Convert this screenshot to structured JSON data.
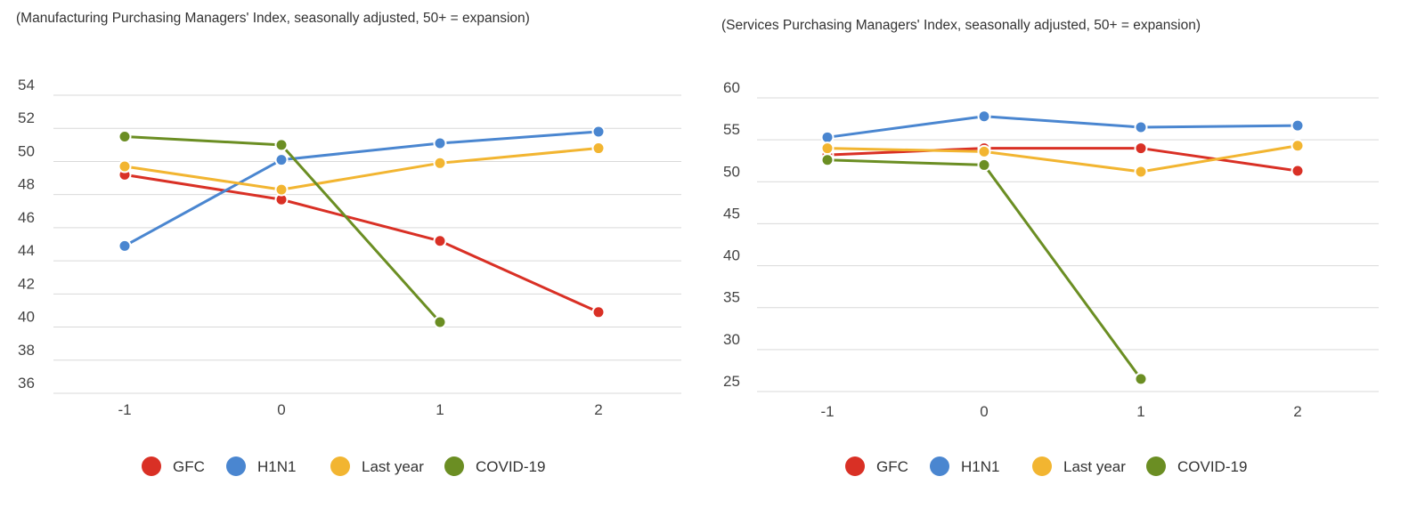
{
  "chart_data": [
    {
      "type": "line",
      "title": "(Manufacturing Purchasing Managers' Index, seasonally adjusted, 50+ = expansion)",
      "xlabel": "",
      "ylabel": "",
      "x": [
        "-1",
        "0",
        "1",
        "2"
      ],
      "yticks": [
        "36",
        "38",
        "40",
        "42",
        "44",
        "46",
        "48",
        "50",
        "52",
        "54"
      ],
      "ylim": [
        35,
        55
      ],
      "grid": true,
      "legend_position": "bottom",
      "series": [
        {
          "name": "GFC",
          "color": "#d93025",
          "values": [
            49.2,
            47.7,
            45.2,
            40.9
          ]
        },
        {
          "name": "H1N1",
          "color": "#4a86d0",
          "values": [
            44.9,
            50.1,
            51.1,
            51.8
          ]
        },
        {
          "name": "Last year",
          "color": "#f2b531",
          "values": [
            49.7,
            48.3,
            49.9,
            50.8
          ]
        },
        {
          "name": "COVID-19",
          "color": "#6b8e23",
          "values": [
            51.5,
            51.0,
            40.3,
            null
          ]
        }
      ]
    },
    {
      "type": "line",
      "title": "(Services Purchasing Managers' Index, seasonally adjusted, 50+ = expansion)",
      "xlabel": "",
      "ylabel": "",
      "x": [
        "-1",
        "0",
        "1",
        "2"
      ],
      "yticks": [
        "25",
        "30",
        "35",
        "40",
        "45",
        "50",
        "55",
        "60"
      ],
      "ylim": [
        24,
        61
      ],
      "grid": true,
      "legend_position": "bottom",
      "series": [
        {
          "name": "GFC",
          "color": "#d93025",
          "values": [
            53.2,
            54.0,
            54.0,
            51.3
          ]
        },
        {
          "name": "H1N1",
          "color": "#4a86d0",
          "values": [
            55.3,
            57.8,
            56.5,
            56.7
          ]
        },
        {
          "name": "Last year",
          "color": "#f2b531",
          "values": [
            54.0,
            53.6,
            51.2,
            54.3
          ]
        },
        {
          "name": "COVID-19",
          "color": "#6b8e23",
          "values": [
            52.6,
            52.0,
            26.5,
            null
          ]
        }
      ]
    }
  ]
}
